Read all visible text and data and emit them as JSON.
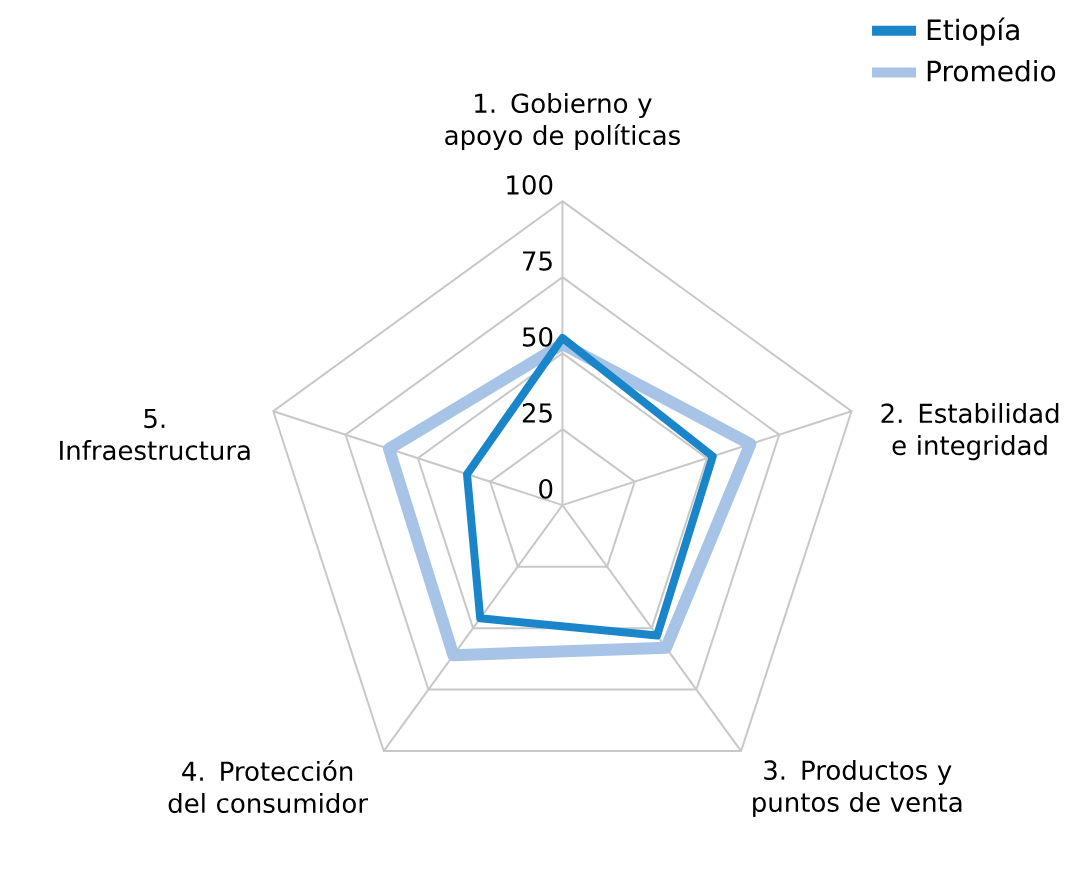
{
  "chart_data": {
    "type": "radar",
    "categories": [
      "1. Gobierno y apoyo de políticas",
      "2. Estabilidad e integridad",
      "3. Productos y puntos de venta",
      "4. Protección del consumidor",
      "5. Infraestructura"
    ],
    "series": [
      {
        "name": "Etiopía",
        "color": "#1a86c9",
        "values": [
          55,
          52,
          53,
          46,
          33
        ]
      },
      {
        "name": "Promedio",
        "color": "#a7c4e6",
        "values": [
          53,
          65,
          58,
          61,
          60
        ]
      }
    ],
    "ylim": [
      0,
      100
    ],
    "yticks": [
      0,
      25,
      50,
      75,
      100
    ],
    "grid": true,
    "legend": "top right",
    "marker": "none",
    "line_style": "solid"
  }
}
